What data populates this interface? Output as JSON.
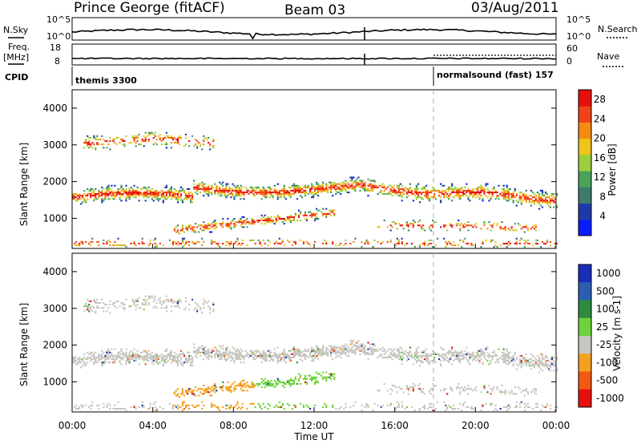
{
  "header": {
    "station": "Prince George (fitACF)",
    "beam": "Beam 03",
    "date": "03/Aug/2011"
  },
  "aux": {
    "nsky_label": "N.Sky",
    "nsky_scale_top": "10^5",
    "nsky_scale_bot": "10^0",
    "nsearch_label": "N.Search",
    "nsearch_scale_top": "10^5",
    "nsearch_scale_bot": "10^0",
    "freq_label": "Freq.",
    "freq_unit": "[MHz]",
    "freq_top": "18",
    "freq_bot": "8",
    "nave_label": "Nave",
    "nave_top": "60",
    "nave_bot": "0",
    "cpid_label": "CPID",
    "cpid_left": "themis 3300",
    "cpid_right": "normalsound (fast) 157"
  },
  "colors": {
    "power_scale": [
      "#0a1cff",
      "#1f3aa8",
      "#3e7b6b",
      "#4aa35a",
      "#9ccf3d",
      "#f0c41a",
      "#f58a12",
      "#f0431a",
      "#e8100d"
    ],
    "velocity_scale": [
      "#e8100d",
      "#f05a12",
      "#f5a11f",
      "#c8c6c0",
      "#6fd23a",
      "#2e8a3c",
      "#2a5fb0",
      "#1a2db8"
    ]
  },
  "chart_data": [
    {
      "type": "heatmap",
      "title": "",
      "xlabel": "",
      "ylabel": "Slant Range [km]",
      "xlim": [
        0,
        24
      ],
      "ylim": [
        180,
        4500
      ],
      "x_ticks": [
        "00:00",
        "04:00",
        "08:00",
        "12:00",
        "16:00",
        "20:00",
        "00:00"
      ],
      "y_ticks": [
        "1000",
        "2000",
        "3000",
        "4000"
      ],
      "colorbar_label": "Power [dB]",
      "colorbar_ticks": [
        "4",
        "8",
        "12",
        "16",
        "20",
        "24",
        "28"
      ],
      "colorbar_range": [
        0,
        30
      ]
    },
    {
      "type": "heatmap",
      "title": "",
      "xlabel": "Time UT",
      "ylabel": "Slant Range [km]",
      "xlim": [
        0,
        24
      ],
      "ylim": [
        180,
        4500
      ],
      "x_ticks": [
        "00:00",
        "04:00",
        "08:00",
        "12:00",
        "16:00",
        "20:00",
        "00:00"
      ],
      "y_ticks": [
        "1000",
        "2000",
        "3000",
        "4000"
      ],
      "colorbar_label": "Velocity [m s-1]",
      "colorbar_ticks": [
        "1000",
        "500",
        "100",
        "25",
        "-25",
        "-100",
        "-500",
        "-1000"
      ]
    }
  ]
}
